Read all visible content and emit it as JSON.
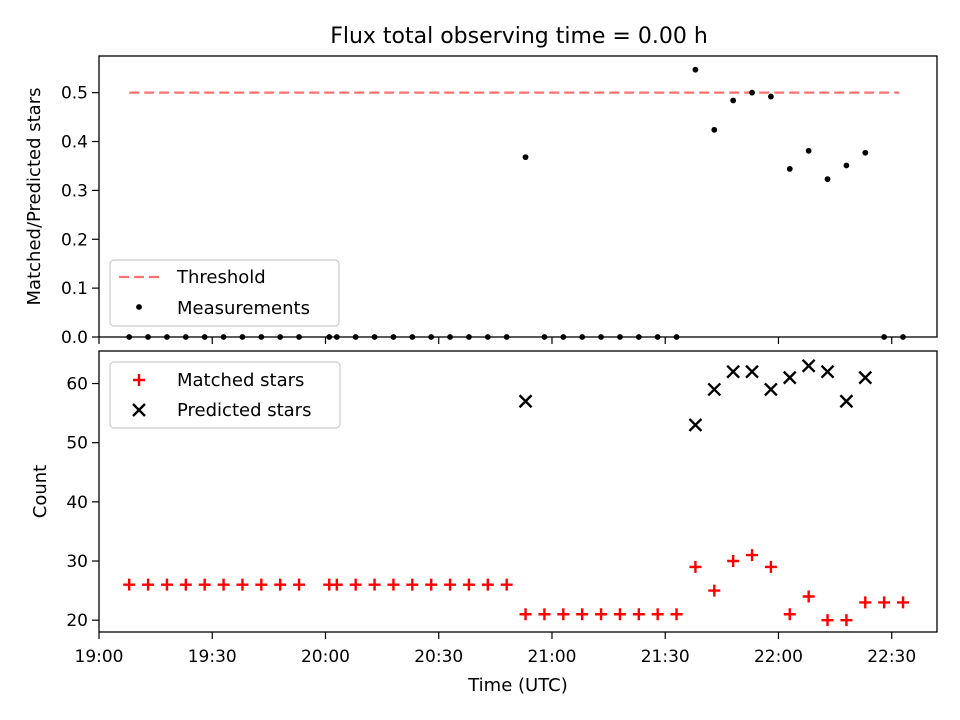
{
  "title": "Flux total observing time = 0.00 h",
  "colors": {
    "threshold": "#ff7070",
    "measurement": "#000000",
    "matched": "#ff0000",
    "predicted": "#000000"
  },
  "chart_data": [
    {
      "type": "scatter",
      "title": "Flux total observing time = 0.00 h",
      "xlabel": "",
      "ylabel": "Matched/Predicted stars",
      "ylim": [
        0,
        0.575
      ],
      "yticks": [
        "0.0",
        "0.1",
        "0.2",
        "0.3",
        "0.4",
        "0.5"
      ],
      "grid": false,
      "legend_position": "lower-left",
      "threshold": {
        "name": "Threshold",
        "value": 0.5,
        "x_start": "19:08",
        "x_end": "22:32",
        "style": "dashed"
      },
      "series": [
        {
          "name": "Measurements",
          "marker": "dot",
          "points": [
            [
              "19:08",
              0
            ],
            [
              "19:13",
              0
            ],
            [
              "19:18",
              0
            ],
            [
              "19:23",
              0
            ],
            [
              "19:28",
              0
            ],
            [
              "19:33",
              0
            ],
            [
              "19:38",
              0
            ],
            [
              "19:43",
              0
            ],
            [
              "19:48",
              0
            ],
            [
              "19:53",
              0
            ],
            [
              "20:01",
              0
            ],
            [
              "20:03",
              0
            ],
            [
              "20:08",
              0
            ],
            [
              "20:13",
              0
            ],
            [
              "20:18",
              0
            ],
            [
              "20:23",
              0
            ],
            [
              "20:28",
              0
            ],
            [
              "20:33",
              0
            ],
            [
              "20:38",
              0
            ],
            [
              "20:43",
              0
            ],
            [
              "20:48",
              0
            ],
            [
              "20:53",
              0.368
            ],
            [
              "20:58",
              0
            ],
            [
              "21:03",
              0
            ],
            [
              "21:08",
              0
            ],
            [
              "21:13",
              0
            ],
            [
              "21:18",
              0
            ],
            [
              "21:23",
              0
            ],
            [
              "21:28",
              0
            ],
            [
              "21:33",
              0
            ],
            [
              "21:38",
              0.547
            ],
            [
              "21:43",
              0.424
            ],
            [
              "21:48",
              0.484
            ],
            [
              "21:53",
              0.5
            ],
            [
              "21:58",
              0.492
            ],
            [
              "22:03",
              0.344
            ],
            [
              "22:08",
              0.381
            ],
            [
              "22:13",
              0.323
            ],
            [
              "22:18",
              0.351
            ],
            [
              "22:23",
              0.377
            ],
            [
              "22:28",
              0
            ],
            [
              "22:33",
              0
            ]
          ]
        }
      ]
    },
    {
      "type": "scatter",
      "xlabel": "Time (UTC)",
      "ylabel": "Count",
      "xticks": [
        "19:00",
        "19:30",
        "20:00",
        "20:30",
        "21:00",
        "21:30",
        "22:00",
        "22:30"
      ],
      "xlim": [
        "19:00",
        "22:42"
      ],
      "ylim": [
        18,
        65.5
      ],
      "yticks": [
        "20",
        "30",
        "40",
        "50",
        "60"
      ],
      "grid": false,
      "legend_position": "upper-left",
      "series": [
        {
          "name": "Matched stars",
          "marker": "plus",
          "points": [
            [
              "19:08",
              26
            ],
            [
              "19:13",
              26
            ],
            [
              "19:18",
              26
            ],
            [
              "19:23",
              26
            ],
            [
              "19:28",
              26
            ],
            [
              "19:33",
              26
            ],
            [
              "19:38",
              26
            ],
            [
              "19:43",
              26
            ],
            [
              "19:48",
              26
            ],
            [
              "19:53",
              26
            ],
            [
              "20:01",
              26
            ],
            [
              "20:03",
              26
            ],
            [
              "20:08",
              26
            ],
            [
              "20:13",
              26
            ],
            [
              "20:18",
              26
            ],
            [
              "20:23",
              26
            ],
            [
              "20:28",
              26
            ],
            [
              "20:33",
              26
            ],
            [
              "20:38",
              26
            ],
            [
              "20:43",
              26
            ],
            [
              "20:48",
              26
            ],
            [
              "20:53",
              21
            ],
            [
              "20:58",
              21
            ],
            [
              "21:03",
              21
            ],
            [
              "21:08",
              21
            ],
            [
              "21:13",
              21
            ],
            [
              "21:18",
              21
            ],
            [
              "21:23",
              21
            ],
            [
              "21:28",
              21
            ],
            [
              "21:33",
              21
            ],
            [
              "21:38",
              29
            ],
            [
              "21:43",
              25
            ],
            [
              "21:48",
              30
            ],
            [
              "21:53",
              31
            ],
            [
              "21:58",
              29
            ],
            [
              "22:03",
              21
            ],
            [
              "22:08",
              24
            ],
            [
              "22:13",
              20
            ],
            [
              "22:18",
              20
            ],
            [
              "22:23",
              23
            ],
            [
              "22:28",
              23
            ],
            [
              "22:33",
              23
            ]
          ]
        },
        {
          "name": "Predicted stars",
          "marker": "x",
          "points": [
            [
              "20:53",
              57
            ],
            [
              "21:38",
              53
            ],
            [
              "21:43",
              59
            ],
            [
              "21:48",
              62
            ],
            [
              "21:53",
              62
            ],
            [
              "21:58",
              59
            ],
            [
              "22:03",
              61
            ],
            [
              "22:08",
              63
            ],
            [
              "22:13",
              62
            ],
            [
              "22:18",
              57
            ],
            [
              "22:23",
              61
            ]
          ]
        }
      ]
    }
  ]
}
